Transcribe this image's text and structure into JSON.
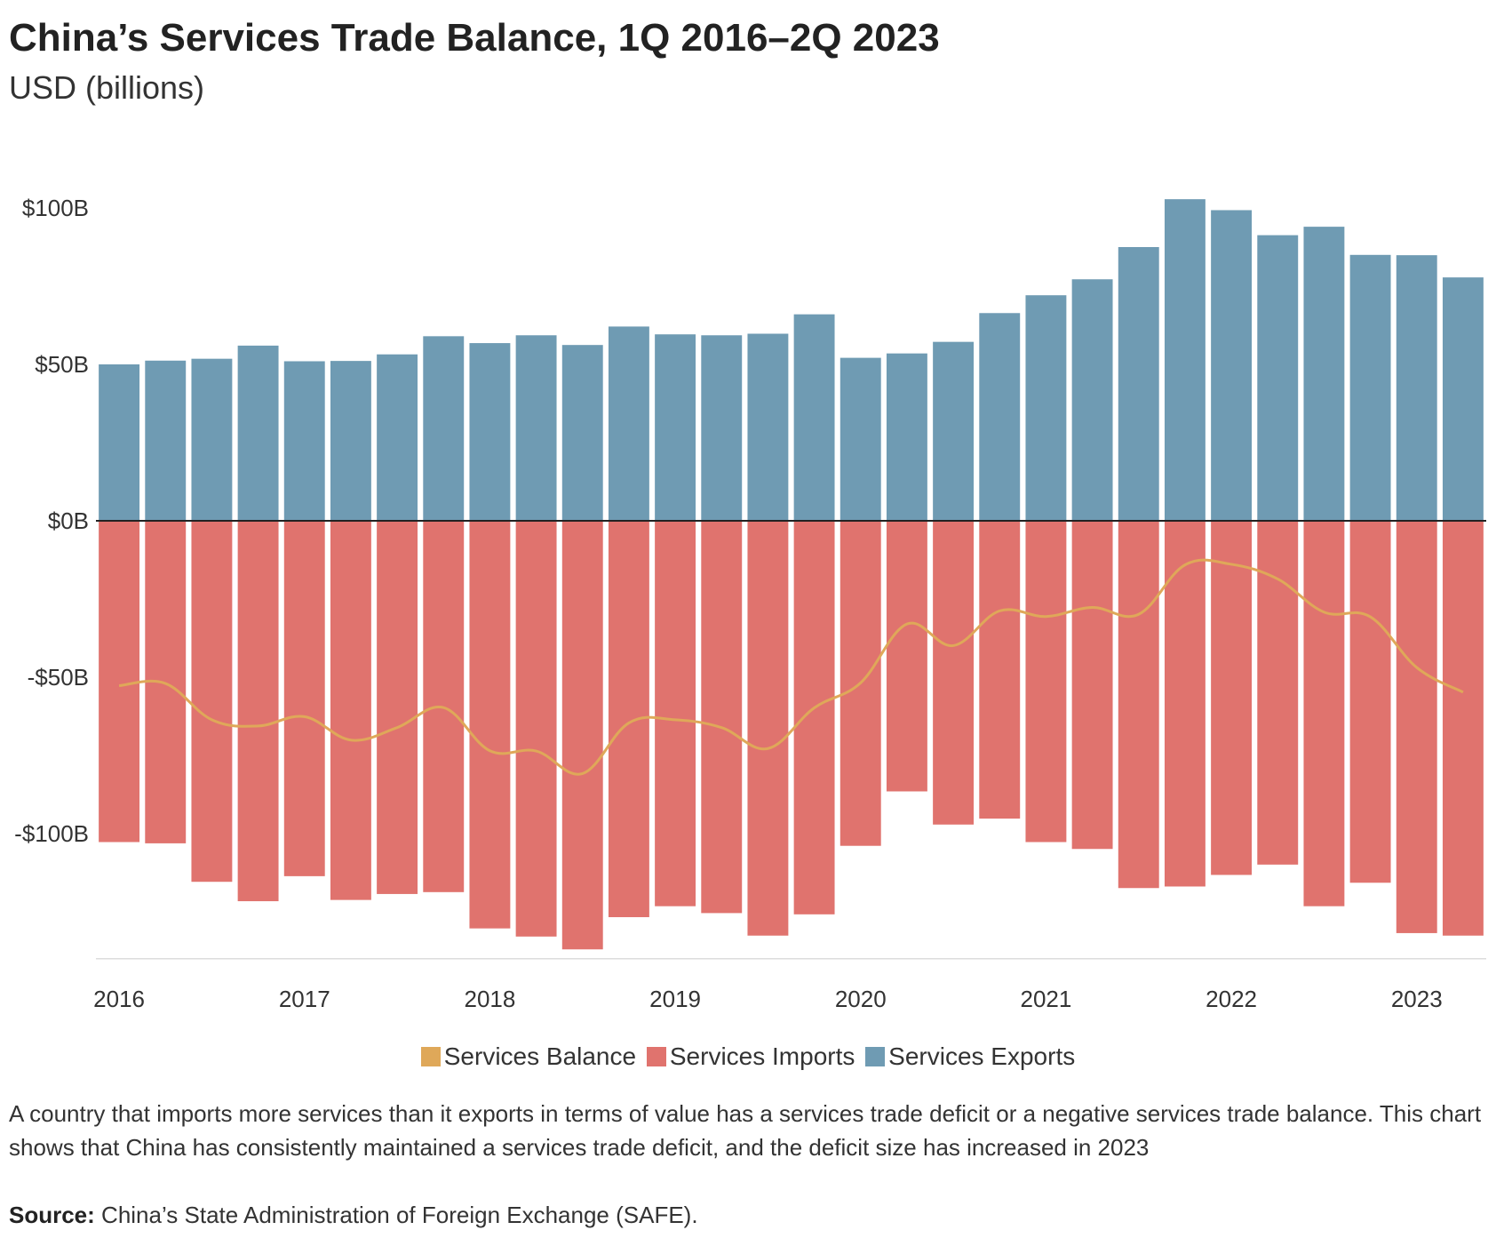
{
  "header": {
    "title": "China’s Services Trade Balance, 1Q 2016–2Q 2023",
    "subtitle": "USD (billions)"
  },
  "legend": {
    "balance": "Services Balance",
    "imports": "Services Imports",
    "exports": "Services Exports"
  },
  "note": "A country that imports more services than it exports in terms of value has a services trade deficit or a negative services trade balance. This chart shows that China has consistently maintained a services trade deficit, and the deficit size has increased in 2023",
  "source": {
    "label": "Source:",
    "text": "China’s State Administration of Foreign Exchange (SAFE)."
  },
  "colors": {
    "exports": "#6f9bb3",
    "imports": "#e0736e",
    "balance": "#dfa859",
    "zero_line": "#222222",
    "axis": "#dddddd"
  },
  "chart_data": {
    "type": "bar",
    "title": "China’s Services Trade Balance, 1Q 2016–2Q 2023",
    "ylabel": "USD (billions)",
    "ylim": [
      -140,
      105
    ],
    "yticks": [
      {
        "value": 100,
        "label": "$100B"
      },
      {
        "value": 50,
        "label": "$50B"
      },
      {
        "value": 0,
        "label": "$0B"
      },
      {
        "value": -50,
        "label": "-$50B"
      },
      {
        "value": -100,
        "label": "-$100B"
      }
    ],
    "xticks": [
      {
        "index": 0,
        "label": "2016"
      },
      {
        "index": 4,
        "label": "2017"
      },
      {
        "index": 8,
        "label": "2018"
      },
      {
        "index": 12,
        "label": "2019"
      },
      {
        "index": 16,
        "label": "2020"
      },
      {
        "index": 20,
        "label": "2021"
      },
      {
        "index": 24,
        "label": "2022"
      },
      {
        "index": 28,
        "label": "2023"
      }
    ],
    "categories": [
      "1Q 2016",
      "2Q 2016",
      "3Q 2016",
      "4Q 2016",
      "1Q 2017",
      "2Q 2017",
      "3Q 2017",
      "4Q 2017",
      "1Q 2018",
      "2Q 2018",
      "3Q 2018",
      "4Q 2018",
      "1Q 2019",
      "2Q 2019",
      "3Q 2019",
      "4Q 2019",
      "1Q 2020",
      "2Q 2020",
      "3Q 2020",
      "4Q 2020",
      "1Q 2021",
      "2Q 2021",
      "3Q 2021",
      "4Q 2021",
      "1Q 2022",
      "2Q 2022",
      "3Q 2022",
      "4Q 2022",
      "1Q 2023",
      "2Q 2023"
    ],
    "series": [
      {
        "name": "Services Exports",
        "type": "bar",
        "values": [
          50.0,
          51.2,
          51.8,
          56.0,
          51.0,
          51.1,
          53.2,
          59.0,
          56.8,
          59.3,
          56.2,
          62.1,
          59.6,
          59.3,
          59.8,
          66.0,
          52.1,
          53.5,
          57.2,
          66.4,
          72.1,
          77.2,
          87.5,
          102.8,
          99.3,
          91.3,
          94.0,
          85.0,
          84.9,
          77.8
        ]
      },
      {
        "name": "Services Imports",
        "type": "bar",
        "values": [
          -102.7,
          -103.1,
          -115.4,
          -121.6,
          -113.6,
          -121.2,
          -119.3,
          -118.7,
          -130.3,
          -132.9,
          -137.0,
          -126.7,
          -123.2,
          -125.4,
          -132.6,
          -125.8,
          -103.9,
          -86.5,
          -97.1,
          -95.2,
          -102.7,
          -104.9,
          -117.4,
          -116.9,
          -113.2,
          -109.9,
          -123.2,
          -115.7,
          -131.8,
          -132.6
        ]
      },
      {
        "name": "Services Balance",
        "type": "line",
        "values": [
          -52.7,
          -52.0,
          -63.6,
          -65.6,
          -62.6,
          -70.1,
          -66.1,
          -59.7,
          -73.5,
          -73.6,
          -80.8,
          -64.6,
          -63.6,
          -66.1,
          -72.8,
          -59.8,
          -51.8,
          -33.0,
          -39.9,
          -28.8,
          -30.6,
          -27.7,
          -29.9,
          -14.1,
          -13.9,
          -18.6,
          -29.2,
          -30.7,
          -46.9,
          -54.8
        ]
      }
    ]
  }
}
